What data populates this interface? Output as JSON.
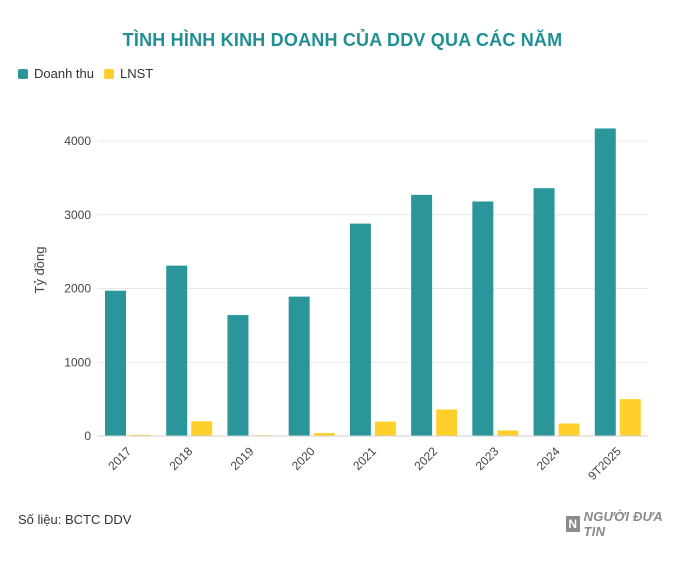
{
  "colors": {
    "doanh_thu": "#2b969a",
    "lnst": "#ffd02c",
    "title": "#1f8f94",
    "grid": "#e8e8e8"
  },
  "chart_data": {
    "type": "bar",
    "title": "TÌNH HÌNH KINH DOANH CỦA DDV QUA CÁC NĂM",
    "xlabel": "",
    "ylabel": "Tỷ đồng",
    "ylim": [
      0,
      4400
    ],
    "yticks": [
      0,
      1000,
      2000,
      3000,
      4000
    ],
    "grid": true,
    "legend_placement": "top-left",
    "categories": [
      "2017",
      "2018",
      "2019",
      "2020",
      "2021",
      "2022",
      "2023",
      "2024",
      "9T2025"
    ],
    "series": [
      {
        "name": "Doanh thu",
        "values": [
          1970,
          2310,
          1640,
          1890,
          2880,
          3270,
          3180,
          3360,
          4170
        ]
      },
      {
        "name": "LNST",
        "values": [
          15,
          200,
          5,
          40,
          195,
          360,
          75,
          170,
          500
        ]
      }
    ]
  },
  "footer": {
    "source": "Số liệu: BCTC DDV",
    "brand": "NGƯỜI ĐƯA TIN",
    "brand_mark": "N"
  }
}
